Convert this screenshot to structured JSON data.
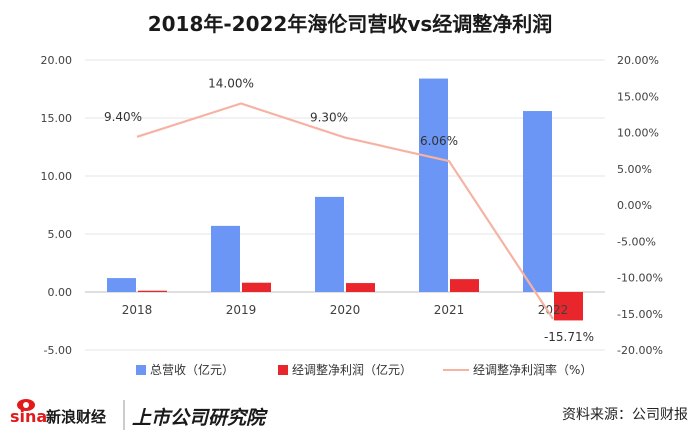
{
  "colors": {
    "revenue": "#6b96f5",
    "profit": "#e8262b",
    "margin": "#f6b3a3",
    "grid": "#e6e6e6"
  },
  "chart_data": {
    "type": "bar",
    "title": "2018年-2022年海伦司营收vs经调整净利润",
    "categories": [
      "2018",
      "2019",
      "2020",
      "2021",
      "2022"
    ],
    "series": [
      {
        "name": "总营收（亿元）",
        "type": "bar",
        "axis": "left",
        "values": [
          1.2,
          5.7,
          8.2,
          18.4,
          15.6
        ]
      },
      {
        "name": "经调整净利润（亿元）",
        "type": "bar",
        "axis": "left",
        "values": [
          0.11,
          0.8,
          0.77,
          1.11,
          -2.45
        ]
      },
      {
        "name": "经调整净利润率（%）",
        "type": "line",
        "axis": "right",
        "values": [
          9.4,
          14.0,
          9.3,
          6.06,
          -15.71
        ],
        "labels": [
          "9.40%",
          "14.00%",
          "9.30%",
          "6.06%",
          "-15.71%"
        ]
      }
    ],
    "y_left": {
      "min": -5,
      "max": 20,
      "ticks": [
        "-5.00",
        "0.00",
        "5.00",
        "10.00",
        "15.00",
        "20.00"
      ]
    },
    "y_right": {
      "min": -20,
      "max": 20,
      "ticks": [
        "-20.00%",
        "-15.00%",
        "-10.00%",
        "-5.00%",
        "0.00%",
        "5.00%",
        "10.00%",
        "15.00%",
        "20.00%"
      ]
    },
    "grid": true,
    "legend": "bottom"
  },
  "footer": {
    "logo_text": "sina新浪财经",
    "logo_sub": "上市公司研究院",
    "source": "资料来源：公司财报"
  }
}
